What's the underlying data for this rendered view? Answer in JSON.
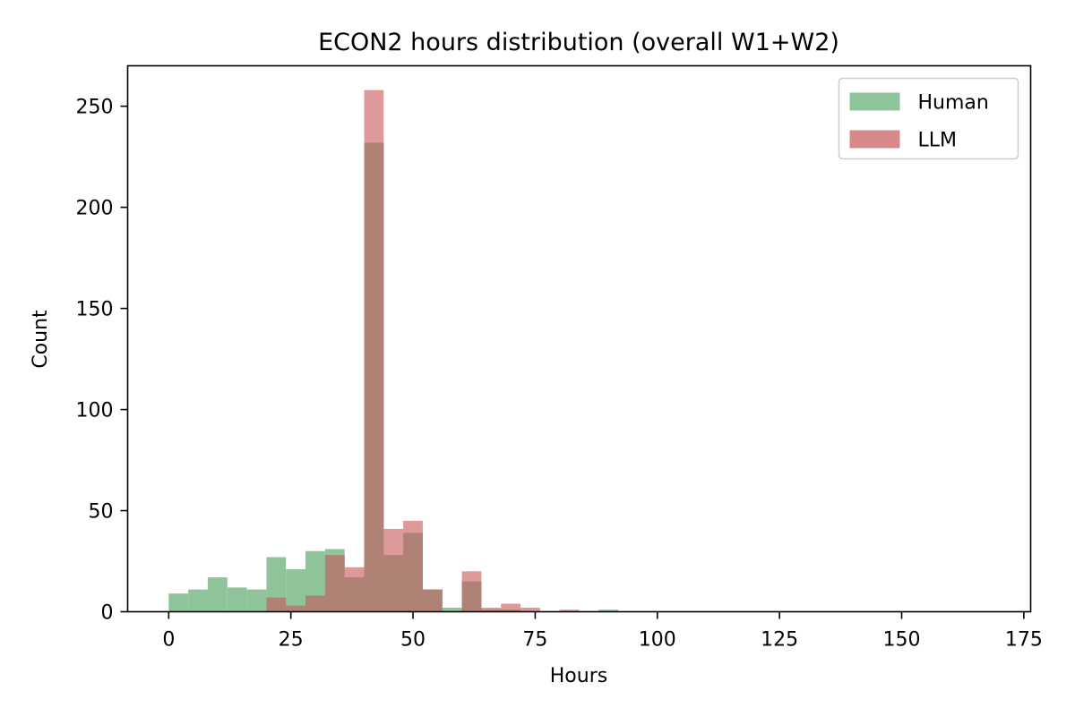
{
  "chart_data": {
    "type": "histogram",
    "title": "ECON2 hours distribution (overall W1+W2)",
    "xlabel": "Hours",
    "ylabel": "Count",
    "xlim": [
      -8.4,
      176.4
    ],
    "ylim": [
      0,
      270
    ],
    "xticks": [
      0,
      25,
      50,
      75,
      100,
      125,
      150,
      175
    ],
    "xtick_labels": [
      "0",
      "25",
      "50",
      "75",
      "100",
      "125",
      "150",
      "175"
    ],
    "yticks": [
      0,
      50,
      100,
      150,
      200,
      250
    ],
    "ytick_labels": [
      "0",
      "50",
      "100",
      "150",
      "200",
      "250"
    ],
    "bin_edges": [
      0,
      4,
      8,
      12,
      16,
      20,
      24,
      28,
      32,
      36,
      40,
      44,
      48,
      52,
      56,
      60,
      64,
      68,
      72,
      76,
      80,
      84,
      88,
      92
    ],
    "grid": false,
    "legend_position": "top-right",
    "series": [
      {
        "name": "Human",
        "color": "#8fc49a",
        "values": [
          9,
          11,
          17,
          12,
          11,
          27,
          21,
          30,
          31,
          17,
          232,
          28,
          39,
          11,
          2,
          15,
          1,
          1,
          0,
          0,
          0,
          0,
          1
        ]
      },
      {
        "name": "LLM",
        "color": "#d88888",
        "values": [
          0,
          0,
          0,
          0,
          0,
          7,
          3,
          8,
          28,
          22,
          258,
          41,
          45,
          11,
          0,
          20,
          2,
          4,
          2,
          0,
          1,
          0,
          0
        ]
      }
    ],
    "overlap_color": "#b08276"
  }
}
